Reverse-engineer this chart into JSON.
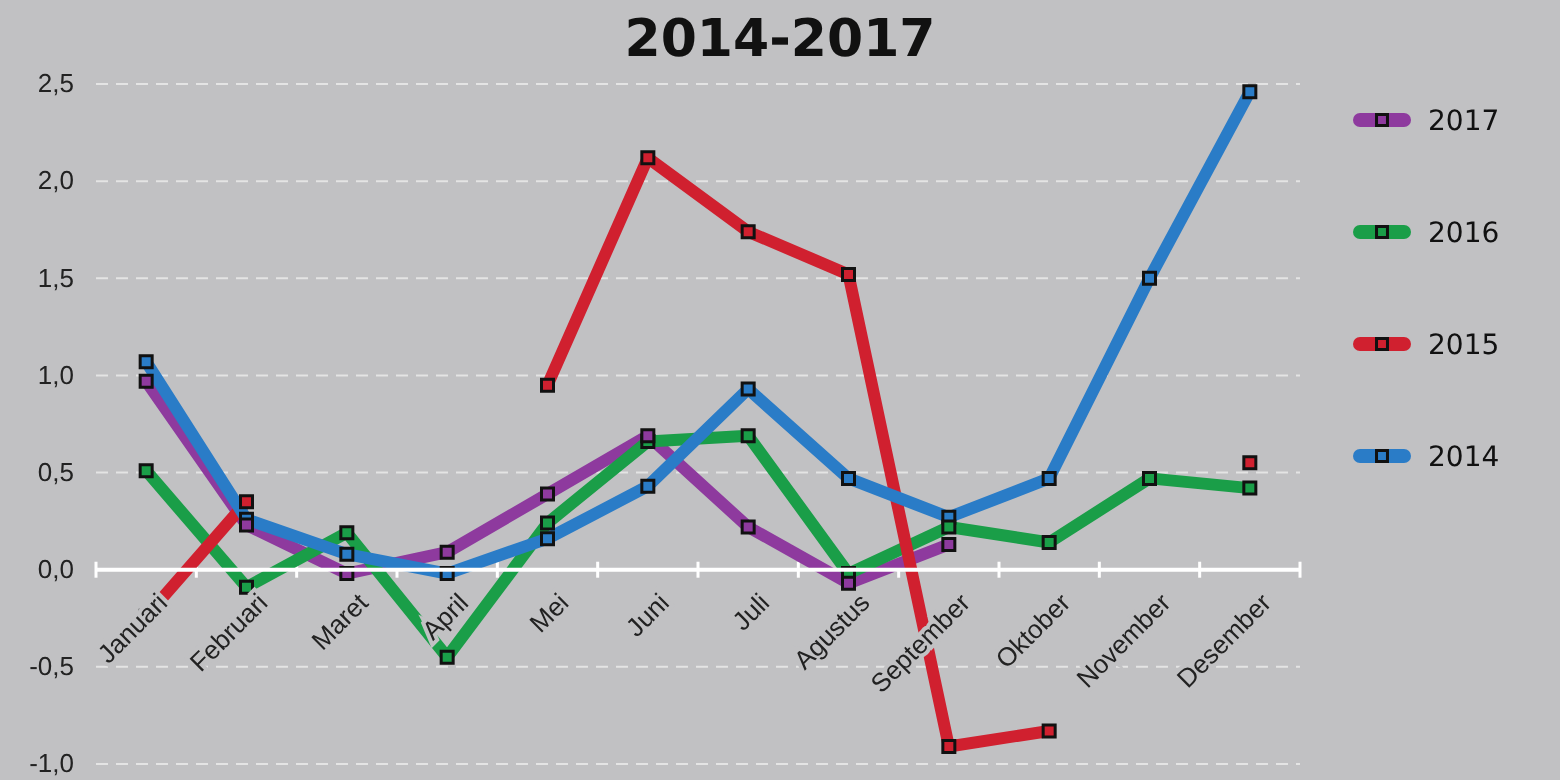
{
  "chart_data": {
    "type": "line",
    "title": "2014-2017",
    "categories": [
      "Januari",
      "Februari",
      "Maret",
      "April",
      "Mei",
      "Juni",
      "Juli",
      "Agustus",
      "September",
      "Oktober",
      "November",
      "Desember"
    ],
    "series": [
      {
        "name": "2017",
        "color": "#8e3a9e",
        "values": [
          0.97,
          0.23,
          -0.02,
          0.09,
          0.39,
          0.69,
          0.22,
          -0.07,
          0.13,
          null,
          null,
          null
        ]
      },
      {
        "name": "2016",
        "color": "#1a9e48",
        "values": [
          0.51,
          -0.09,
          0.19,
          -0.45,
          0.24,
          0.66,
          0.69,
          -0.02,
          0.22,
          0.14,
          0.47,
          0.42
        ]
      },
      {
        "name": "2015",
        "color": "#d0202f",
        "values": [
          -0.24,
          0.35,
          null,
          null,
          0.95,
          2.12,
          1.74,
          1.52,
          -0.91,
          -0.83,
          null,
          0.55
        ]
      },
      {
        "name": "2014",
        "color": "#2a7cc7",
        "values": [
          1.07,
          0.26,
          0.08,
          -0.02,
          0.16,
          0.43,
          0.93,
          0.47,
          0.27,
          0.47,
          1.5,
          2.46
        ]
      }
    ],
    "ylim": [
      -1,
      2.5
    ],
    "yticks": [
      {
        "value": -1,
        "label": "-1,0"
      },
      {
        "value": -0.5,
        "label": "-0,5"
      },
      {
        "value": 0,
        "label": "0,0"
      },
      {
        "value": 0.5,
        "label": "0,5"
      },
      {
        "value": 1,
        "label": "1,0"
      },
      {
        "value": 1.5,
        "label": "1,5"
      },
      {
        "value": 2,
        "label": "2,0"
      },
      {
        "value": 2.5,
        "label": "2,5"
      }
    ],
    "grid": "y",
    "legend": "right",
    "marker": "square",
    "line_style": "solid"
  }
}
